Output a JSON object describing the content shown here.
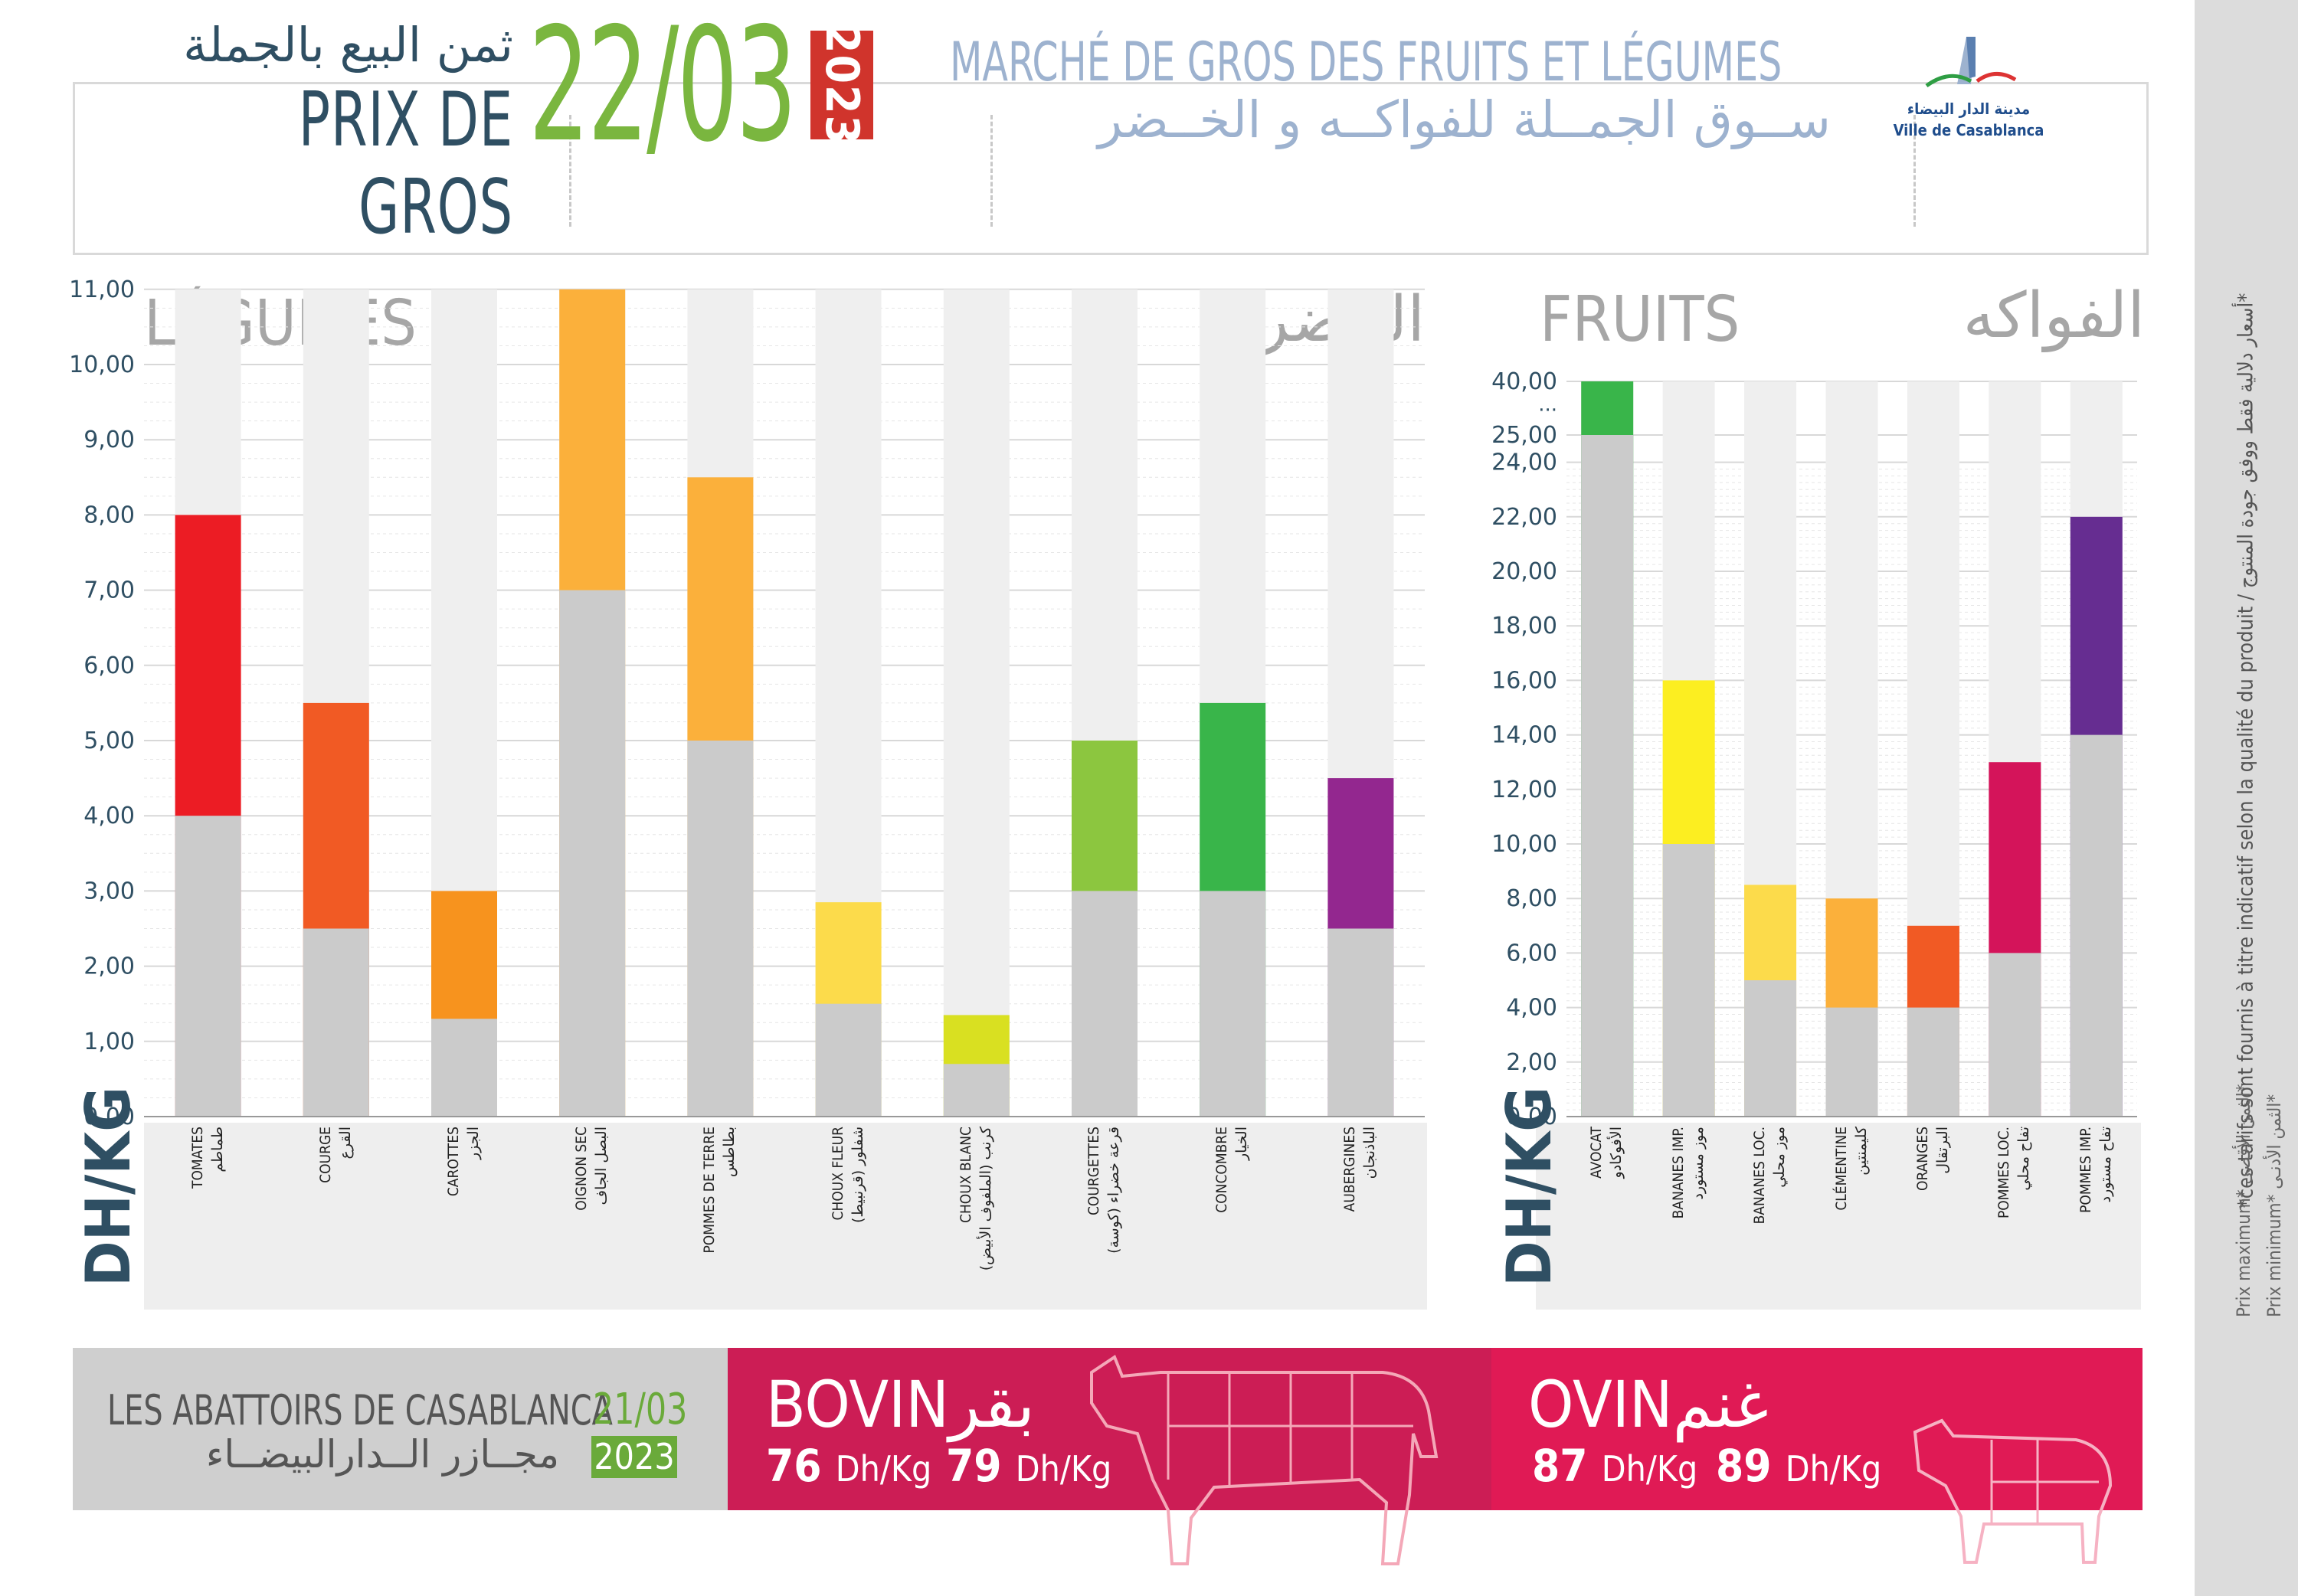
{
  "header": {
    "title_ar": "ثمن البيع بالجملة",
    "title_fr": "PRIX DE GROS",
    "date": "22/03",
    "year": "2023",
    "market_fr": "MARCHÉ DE GROS DES FRUITS ET LÉGUMES",
    "market_ar": "ســوق الجمــلة للفواكــه و الخــضر",
    "logo_ar": "مدينة الدار البيضاء",
    "logo_fr": "Ville de Casablanca"
  },
  "side": {
    "note": "*ces tarifs sont fournis à titre indicatif selon la qualité du produit / أسعار دلالية فقط ووفق جودة المنتوج*",
    "legend_max": "Prix maximum* الثمن الأقصى*",
    "legend_min": "Prix minimum* الثمن الأدنـى*"
  },
  "colors": {
    "min_bar": "#cbcbcb",
    "column_bg": "#efefef",
    "green": "#7ab63f",
    "red_year": "#d0342c",
    "bovin_band": "#cc1d55",
    "ovin_band": "#e01a55"
  },
  "chart_data": [
    {
      "type": "bar",
      "name_fr": "LÉGUMES",
      "name_ar": "الخضر",
      "unit": "DH/KG",
      "ylim": [
        0,
        11
      ],
      "yticks": [
        "0,00",
        "1,00",
        "2,00",
        "3,00",
        "4,00",
        "5,00",
        "6,00",
        "7,00",
        "8,00",
        "9,00",
        "10,00",
        "11,00"
      ],
      "categories": [
        {
          "fr": "TOMATES",
          "ar": "طماطم"
        },
        {
          "fr": "COURGE",
          "ar": "القرع"
        },
        {
          "fr": "CAROTTES",
          "ar": "الجزر"
        },
        {
          "fr": "OIGNON SEC",
          "ar": "البصل الجاف"
        },
        {
          "fr": "POMMES DE TERRE",
          "ar": "بطاطس"
        },
        {
          "fr": "CHOUX FLEUR",
          "ar": "شفلور (قرنبيط)"
        },
        {
          "fr": "CHOUX BLANC",
          "ar": "كرنب (الملفوف الأبيض)"
        },
        {
          "fr": "COURGETTES",
          "ar": "قرعة خضراء (كوسة)"
        },
        {
          "fr": "CONCOMBRE",
          "ar": "الخيار"
        },
        {
          "fr": "AUBERGINES",
          "ar": "الباذنجان"
        }
      ],
      "series": [
        {
          "name": "Prix minimum",
          "values": [
            4,
            2.5,
            1.3,
            7,
            5,
            1.5,
            0.7,
            3,
            3,
            2.5
          ]
        },
        {
          "name": "Prix maximum",
          "values": [
            8,
            5.5,
            3,
            11,
            8.5,
            2.85,
            1.35,
            5,
            5.5,
            4.5
          ]
        }
      ],
      "max_colors": [
        "#ec1c24",
        "#f15a24",
        "#f7931e",
        "#fbb03b",
        "#fbb03b",
        "#fcdb4b",
        "#d9e021",
        "#8cc63f",
        "#39b54a",
        "#93278f"
      ],
      "grid": true
    },
    {
      "type": "bar",
      "name_fr": "FRUITS",
      "name_ar": "الفواكه",
      "unit": "DH/KG",
      "ylim": [
        0,
        40
      ],
      "axis_break": "between 25,00 and 40,00",
      "yticks": [
        "0,00",
        "2,00",
        "4,00",
        "6,00",
        "8,00",
        "10,00",
        "12,00",
        "14,00",
        "16,00",
        "18,00",
        "20,00",
        "22,00",
        "24,00",
        "25,00",
        "...",
        "40,00"
      ],
      "categories": [
        {
          "fr": "AVOCAT",
          "ar": "الأفوكادو"
        },
        {
          "fr": "BANANES IMP.",
          "ar": "موز مستورد"
        },
        {
          "fr": "BANANES LOC.",
          "ar": "موز محلي"
        },
        {
          "fr": "CLÉMENTINE",
          "ar": "كليمنتين"
        },
        {
          "fr": "ORANGES",
          "ar": "البرتقال"
        },
        {
          "fr": "POMMES LOC.",
          "ar": "تفاح محلي"
        },
        {
          "fr": "POMMES IMP.",
          "ar": "تفاح مستورد"
        }
      ],
      "series": [
        {
          "name": "Prix minimum",
          "values": [
            25,
            10,
            5,
            4,
            4,
            6,
            14
          ]
        },
        {
          "name": "Prix maximum",
          "values": [
            40,
            16,
            8.5,
            8,
            7,
            13,
            22
          ]
        }
      ],
      "max_colors": [
        "#39b54a",
        "#fcee21",
        "#fcdb4b",
        "#fbb03b",
        "#f15a24",
        "#d4145a",
        "#662d91"
      ],
      "grid": true
    }
  ],
  "slaughter": {
    "name_fr": "LES ABATTOIRS DE CASABLANCA",
    "name_ar": "مجــازر الــدارالبيضــاء",
    "date": "21/03",
    "year": "2023",
    "bovin": {
      "label_fr": "BOVIN",
      "label_ar": "بقر",
      "min_value": "76",
      "max_value": "79",
      "unit": "Dh/Kg"
    },
    "ovin": {
      "label_fr": "OVIN",
      "label_ar": "غنم",
      "min_value": "87",
      "max_value": "89",
      "unit": "Dh/Kg"
    }
  }
}
